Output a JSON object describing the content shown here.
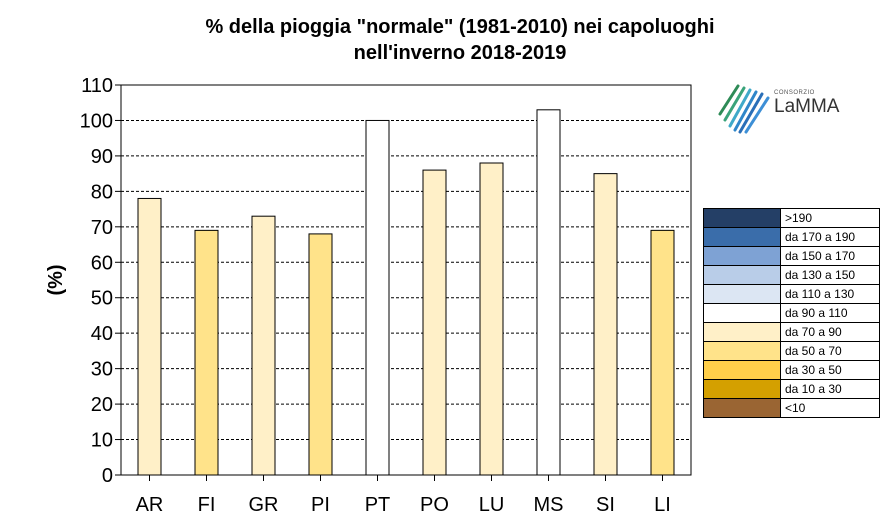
{
  "chart_data": {
    "type": "bar",
    "title_line1": "%  della pioggia \"normale\" (1981-2010)  nei capoluoghi",
    "title_line2": "nell'inverno 2018-2019",
    "ylabel": "(%)",
    "xlabel": "",
    "ylim": [
      0,
      110
    ],
    "yticks": [
      0,
      10,
      20,
      30,
      40,
      50,
      60,
      70,
      80,
      90,
      100,
      110
    ],
    "grid": "horizontal dashed",
    "categories": [
      "AR",
      "FI",
      "GR",
      "PI",
      "PT",
      "PO",
      "LU",
      "MS",
      "SI",
      "LI"
    ],
    "values": [
      78,
      69,
      73,
      68,
      100,
      86,
      88,
      103,
      85,
      69
    ],
    "bar_colors": [
      "#FFF0C8",
      "#FFE38A",
      "#FFF0C8",
      "#FFE38A",
      "#FFFFFF",
      "#FFF0C8",
      "#FFF0C8",
      "#FFFFFF",
      "#FFF0C8",
      "#FFE38A"
    ]
  },
  "legend": {
    "items": [
      {
        "label": ">190",
        "color": "#243F66"
      },
      {
        "label": "da 170 a 190",
        "color": "#3A6DAA"
      },
      {
        "label": "da 150 a 170",
        "color": "#7EA2D4"
      },
      {
        "label": "da 130 a 150",
        "color": "#B9CDE8"
      },
      {
        "label": "da 110 a 130",
        "color": "#DCE6F3"
      },
      {
        "label": "da 90 a 110",
        "color": "#FFFFFF"
      },
      {
        "label": "da 70 a 90",
        "color": "#FFF0C8"
      },
      {
        "label": "da 50 a 70",
        "color": "#FFE38A"
      },
      {
        "label": "da 30 a 50",
        "color": "#FFCF4A"
      },
      {
        "label": "da 10 a 30",
        "color": "#D4A000"
      },
      {
        "label": "<10",
        "color": "#9A6533"
      }
    ]
  },
  "logo": {
    "small_text": "CONSORZIO",
    "main_text": "LaMMA"
  }
}
